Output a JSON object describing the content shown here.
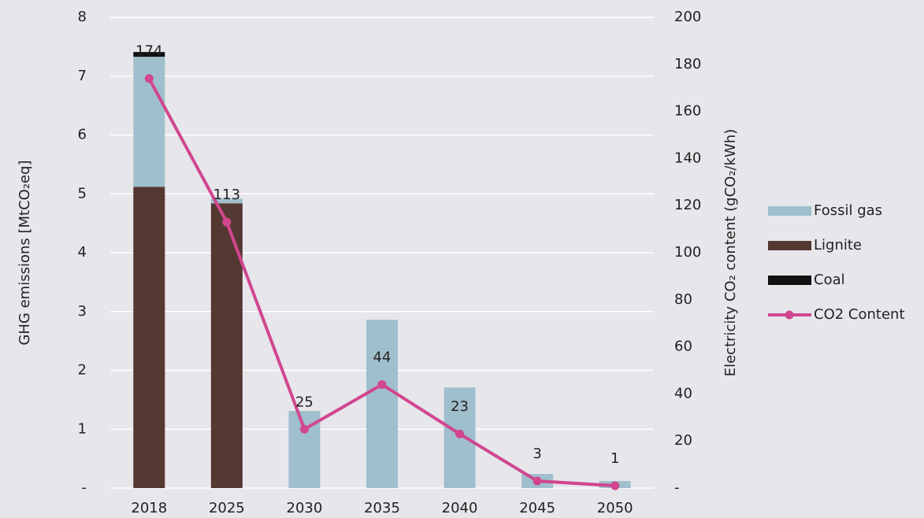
{
  "chart_data": {
    "type": "bar",
    "categories": [
      "2018",
      "2025",
      "2030",
      "2035",
      "2040",
      "2045",
      "2050"
    ],
    "series": [
      {
        "name": "Lignite",
        "color": "#553832",
        "values": [
          5.12,
          4.84,
          0,
          0,
          0,
          0,
          0
        ]
      },
      {
        "name": "Fossil gas",
        "color": "#9fbfcc",
        "values": [
          2.21,
          0.08,
          1.31,
          2.86,
          1.71,
          0.24,
          0.12
        ]
      },
      {
        "name": "Coal",
        "color": "#111111",
        "values": [
          0.08,
          0,
          0,
          0,
          0,
          0,
          0
        ]
      },
      {
        "name": "CO2 Content",
        "color": "#d1468f",
        "type": "line",
        "axis": "y2",
        "values": [
          174,
          113,
          25,
          44,
          23,
          3,
          1
        ]
      }
    ],
    "ylabel": "GHG emissions [MtCO₂eq]",
    "y2label": "Electricity CO₂ content (gCO₂/kWh)",
    "ylim": [
      0,
      8
    ],
    "yticks": [
      {
        "value": 0,
        "label": "-"
      },
      1,
      2,
      3,
      4,
      5,
      6,
      7,
      8
    ],
    "y2lim": [
      0,
      200
    ],
    "y2ticks": [
      {
        "value": 0,
        "label": "-"
      },
      20,
      40,
      60,
      80,
      100,
      120,
      140,
      160,
      180,
      200
    ],
    "grid": true,
    "legend": "right"
  }
}
